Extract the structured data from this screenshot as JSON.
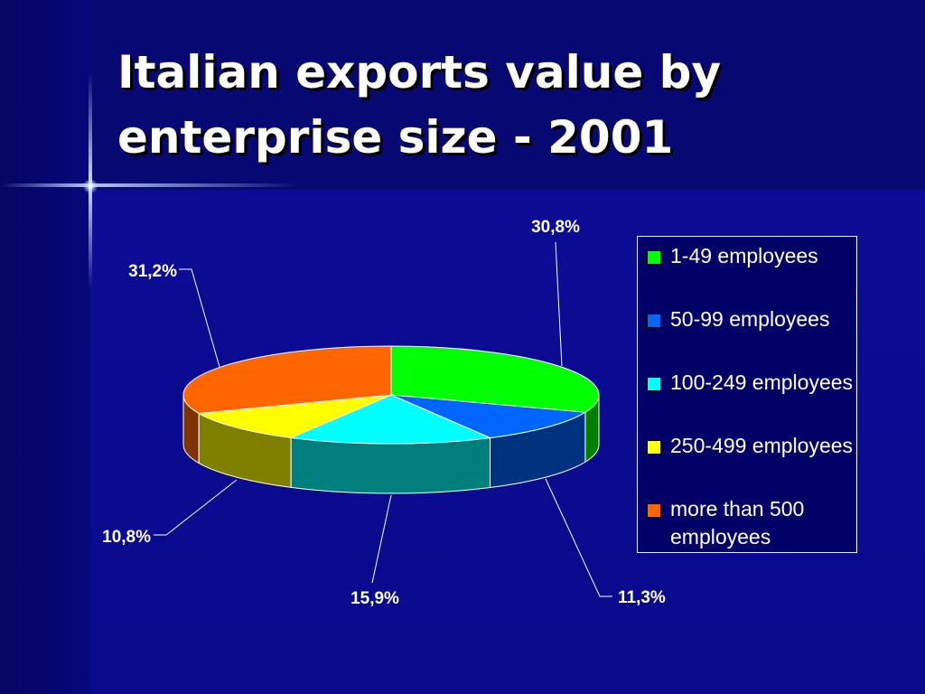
{
  "slide": {
    "title_line1": "Italian exports value by",
    "title_line2": "enterprise size - 2001"
  },
  "chart_data": {
    "type": "pie",
    "title": "Italian exports value by enterprise size - 2001",
    "three_d": true,
    "legend_placement": "right",
    "categories": [
      "1-49 employees",
      "50-99 employees",
      "100-249 employees",
      "250-499 employees",
      "more than 500 employees"
    ],
    "values": [
      30.8,
      11.3,
      15.9,
      10.8,
      31.2
    ],
    "value_labels": [
      "30,8%",
      "11,3%",
      "15,9%",
      "10,8%",
      "31,2%"
    ],
    "colors": [
      "#00ff00",
      "#0066ff",
      "#00ffff",
      "#ffff00",
      "#ff6600"
    ],
    "side_colors": [
      "#007f00",
      "#00337f",
      "#007f7f",
      "#7f7f00",
      "#7f3300"
    ]
  },
  "legend": {
    "items": [
      {
        "label": "1-49 employees",
        "color": "#00ff00"
      },
      {
        "label": "50-99 employees",
        "color": "#0066ff"
      },
      {
        "label": "100-249 employees",
        "color": "#00ffff"
      },
      {
        "label": "250-499 employees",
        "color": "#ffff00"
      },
      {
        "label": "more than 500 employees",
        "color": "#ff6600"
      }
    ]
  }
}
